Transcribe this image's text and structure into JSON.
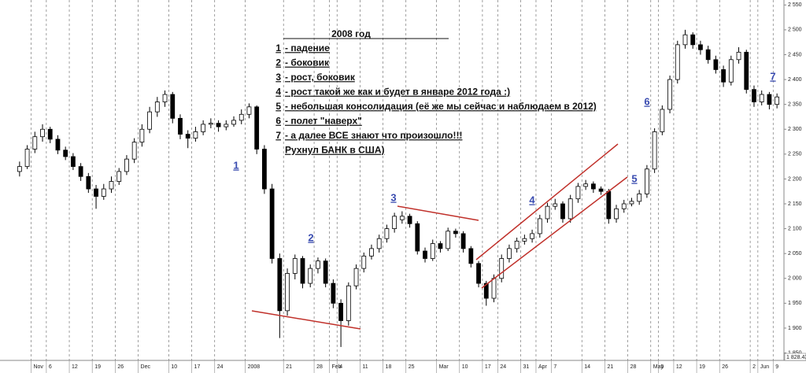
{
  "chart_data": {
    "type": "candlestick",
    "categories": [
      null,
      null,
      "Nov",
      null,
      "6",
      null,
      null,
      "12",
      null,
      null,
      "19",
      null,
      null,
      "26",
      null,
      null,
      "Dec",
      null,
      null,
      null,
      "10",
      null,
      null,
      "17",
      null,
      null,
      "24",
      null,
      null,
      null,
      "2008",
      null,
      null,
      null,
      null,
      "21",
      null,
      null,
      null,
      "28",
      null,
      "Feb",
      "4",
      null,
      null,
      "11",
      null,
      null,
      "18",
      null,
      null,
      "25",
      null,
      null,
      null,
      "Mar",
      null,
      null,
      "10",
      null,
      null,
      "17",
      null,
      "24",
      null,
      null,
      "31",
      null,
      "Apr",
      null,
      "7",
      null,
      null,
      null,
      "14",
      null,
      null,
      "21",
      null,
      null,
      "28",
      null,
      null,
      "May",
      "5",
      null,
      "12",
      null,
      null,
      "19",
      null,
      null,
      "26",
      null,
      null,
      null,
      "2",
      "Jun",
      null,
      "9"
    ],
    "open": [
      2215,
      2225,
      2260,
      2285,
      2300,
      2280,
      2258,
      2245,
      2225,
      2205,
      2180,
      2165,
      2180,
      2195,
      2215,
      2240,
      2274,
      2300,
      2335,
      2355,
      2370,
      2322,
      2290,
      2282,
      2295,
      2310,
      2312,
      2305,
      2310,
      2318,
      2330,
      2345,
      2260,
      2180,
      2040,
      1935,
      2010,
      2040,
      1990,
      2020,
      2035,
      1990,
      1950,
      1915,
      1985,
      2020,
      2045,
      2060,
      2080,
      2100,
      2118,
      2125,
      2110,
      2055,
      2040,
      2070,
      2060,
      2095,
      2090,
      2060,
      2030,
      1990,
      1960,
      2000,
      2040,
      2060,
      2075,
      2080,
      2090,
      2120,
      2145,
      2150,
      2120,
      2160,
      2185,
      2190,
      2180,
      2175,
      2120,
      2140,
      2150,
      2155,
      2170,
      2220,
      2295,
      2340,
      2400,
      2470,
      2490,
      2470,
      2460,
      2440,
      2420,
      2395,
      2440,
      2455,
      2380,
      2355,
      2370,
      2350
    ],
    "high": [
      2235,
      2268,
      2295,
      2310,
      2305,
      2288,
      2265,
      2252,
      2232,
      2212,
      2188,
      2190,
      2205,
      2222,
      2248,
      2282,
      2310,
      2345,
      2365,
      2378,
      2375,
      2330,
      2298,
      2305,
      2318,
      2322,
      2318,
      2318,
      2326,
      2340,
      2352,
      2348,
      2268,
      2190,
      2050,
      2020,
      2048,
      2045,
      2028,
      2042,
      2040,
      1998,
      1958,
      1992,
      2028,
      2052,
      2068,
      2088,
      2108,
      2132,
      2135,
      2130,
      2115,
      2062,
      2078,
      2075,
      2102,
      2100,
      2095,
      2065,
      2035,
      1995,
      2008,
      2048,
      2068,
      2082,
      2088,
      2098,
      2128,
      2152,
      2160,
      2155,
      2168,
      2192,
      2198,
      2195,
      2185,
      2180,
      2148,
      2158,
      2162,
      2178,
      2228,
      2302,
      2348,
      2408,
      2478,
      2500,
      2495,
      2478,
      2468,
      2448,
      2428,
      2448,
      2465,
      2460,
      2388,
      2378,
      2375,
      2372
    ],
    "low": [
      2205,
      2220,
      2252,
      2275,
      2272,
      2250,
      2238,
      2218,
      2196,
      2172,
      2140,
      2158,
      2172,
      2188,
      2208,
      2232,
      2265,
      2292,
      2325,
      2345,
      2312,
      2280,
      2262,
      2275,
      2288,
      2302,
      2295,
      2298,
      2305,
      2310,
      2322,
      2250,
      2170,
      2030,
      1880,
      1925,
      1998,
      1980,
      1982,
      2010,
      1982,
      1940,
      1862,
      1905,
      1978,
      2012,
      2038,
      2052,
      2072,
      2092,
      2110,
      2102,
      2048,
      2032,
      2035,
      2052,
      2055,
      2082,
      2052,
      2022,
      1982,
      1945,
      1952,
      1992,
      2032,
      2052,
      2068,
      2072,
      2082,
      2112,
      2138,
      2112,
      2112,
      2152,
      2178,
      2172,
      2168,
      2110,
      2112,
      2132,
      2145,
      2148,
      2162,
      2212,
      2288,
      2332,
      2392,
      2462,
      2462,
      2450,
      2432,
      2412,
      2385,
      2388,
      2432,
      2372,
      2345,
      2348,
      2340,
      2342
    ],
    "close": [
      2225,
      2260,
      2285,
      2300,
      2280,
      2258,
      2245,
      2225,
      2205,
      2180,
      2165,
      2180,
      2195,
      2215,
      2240,
      2274,
      2300,
      2335,
      2355,
      2370,
      2322,
      2290,
      2282,
      2295,
      2310,
      2312,
      2305,
      2310,
      2318,
      2330,
      2345,
      2260,
      2180,
      2040,
      1935,
      2010,
      2040,
      1990,
      2020,
      2035,
      1990,
      1950,
      1915,
      1985,
      2020,
      2045,
      2060,
      2080,
      2100,
      2125,
      2125,
      2110,
      2055,
      2040,
      2070,
      2060,
      2095,
      2090,
      2060,
      2030,
      1990,
      1960,
      2000,
      2040,
      2060,
      2075,
      2080,
      2090,
      2120,
      2145,
      2150,
      2120,
      2160,
      2185,
      2190,
      2180,
      2175,
      2120,
      2140,
      2150,
      2155,
      2170,
      2220,
      2295,
      2340,
      2400,
      2470,
      2490,
      2470,
      2460,
      2440,
      2420,
      2395,
      2440,
      2455,
      2380,
      2355,
      2370,
      2350,
      2365
    ],
    "ylim": [
      1835,
      2560
    ],
    "yticks": [
      {
        "value": 1850,
        "label": "1 850"
      },
      {
        "value": 1900,
        "label": "1 900"
      },
      {
        "value": 1950,
        "label": "1 950"
      },
      {
        "value": 2000,
        "label": "2 000"
      },
      {
        "value": 2050,
        "label": "2 050"
      },
      {
        "value": 2100,
        "label": "2 100"
      },
      {
        "value": 2150,
        "label": "2 150"
      },
      {
        "value": 2200,
        "label": "2 200"
      },
      {
        "value": 2250,
        "label": "2 250"
      },
      {
        "value": 2300,
        "label": "2 300"
      },
      {
        "value": 2350,
        "label": "2 350"
      },
      {
        "value": 2400,
        "label": "2 400"
      },
      {
        "value": 2450,
        "label": "2 450"
      },
      {
        "value": 2500,
        "label": "2 500"
      },
      {
        "value": 2550,
        "label": "2 550"
      }
    ],
    "last_price_label": "1 828.43",
    "up_color": "#ffffff",
    "down_color": "#000000",
    "annotation": {
      "title": "2008 год",
      "items": [
        {
          "num": "1",
          "text": "- падение"
        },
        {
          "num": "2",
          "text": "- боковик"
        },
        {
          "num": "3",
          "text": "- рост, боковик"
        },
        {
          "num": "4",
          "text": "- рост такой же как и будет в январе 2012 года :)",
          "color": "#e8201e"
        },
        {
          "num": "5",
          "text": "- небольшая консолидация (её же мы сейчас и наблюдаем в 2012)"
        },
        {
          "num": "6",
          "text": "- полет \"наверх\""
        },
        {
          "num": "7",
          "text": "- а далее ВСЕ знают что произошло!!!"
        }
      ],
      "footer": "Рухнул БАНК в США)"
    },
    "markers": [
      "1",
      "2",
      "3",
      "4",
      "5",
      "6",
      "7"
    ]
  }
}
